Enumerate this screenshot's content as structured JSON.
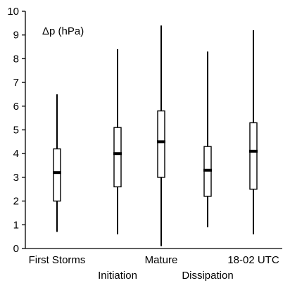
{
  "chart_data": {
    "type": "box",
    "annotation": "Δp (hPa)",
    "ylim": [
      0,
      10
    ],
    "yticks": [
      0,
      1,
      2,
      3,
      4,
      5,
      6,
      7,
      8,
      9,
      10
    ],
    "grid": false,
    "categories": [
      "First Storms",
      "Initiation",
      "Mature",
      "Dissipation",
      "18-02 UTC"
    ],
    "boxes": [
      {
        "category": "First Storms",
        "min": 0.7,
        "q1": 2.0,
        "median": 3.2,
        "q3": 4.2,
        "max": 6.5
      },
      {
        "category": "Initiation",
        "min": 0.6,
        "q1": 2.6,
        "median": 4.0,
        "q3": 5.1,
        "max": 8.4
      },
      {
        "category": "Mature",
        "min": 0.1,
        "q1": 3.0,
        "median": 4.5,
        "q3": 5.8,
        "max": 9.4
      },
      {
        "category": "Dissipation",
        "min": 0.9,
        "q1": 2.2,
        "median": 3.3,
        "q3": 4.3,
        "max": 8.3
      },
      {
        "category": "18-02 UTC",
        "min": 0.6,
        "q1": 2.5,
        "median": 4.1,
        "q3": 5.3,
        "max": 9.2
      }
    ]
  }
}
